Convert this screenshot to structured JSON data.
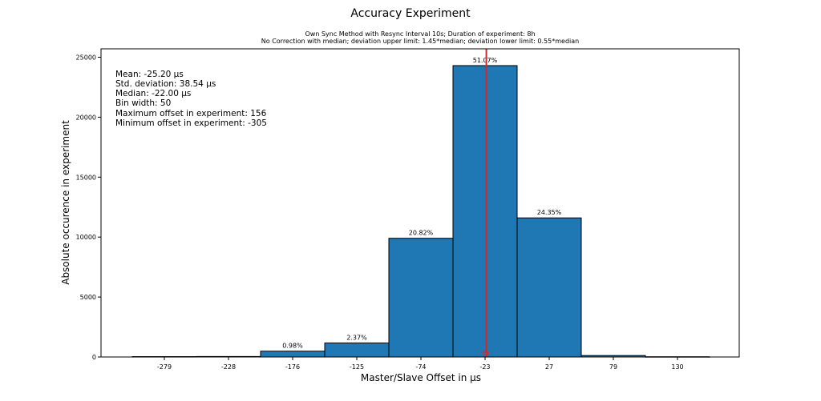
{
  "chart_data": {
    "type": "bar",
    "title": "Accuracy Experiment",
    "subtitle_lines": [
      "Own Sync Method with Resync Interval 10s; Duration of experiment: 8h",
      "No Correction with median; deviation upper limit: 1.45*median; deviation lower limit: 0.55*median"
    ],
    "xlabel": "Master/Slave Offset in µs",
    "ylabel": "Absolute occurence in experiment",
    "categories": [
      "-279",
      "-228",
      "-176",
      "-125",
      "-74",
      "-23",
      "27",
      "79",
      "130"
    ],
    "values": [
      30,
      40,
      485,
      1170,
      9900,
      24300,
      11600,
      120,
      20
    ],
    "bar_labels": [
      "",
      "",
      "0.98%",
      "2.37%",
      "20.82%",
      "51.07%",
      "24.35%",
      "",
      ""
    ],
    "ylim": [
      0,
      25700
    ],
    "yticks": [
      0,
      5000,
      10000,
      15000,
      20000,
      25000
    ],
    "median_line_x": -22,
    "mean_marker_x": -25.2,
    "stats": [
      "Mean: -25.20 µs",
      "Std. deviation: 38.54 µs",
      "Median: -22.00 µs",
      "Bin width: 50",
      "Maximum offset in experiment: 156",
      "Minimum offset in experiment: -305"
    ],
    "colors": {
      "bar": "#1f77b4",
      "edge": "#000000",
      "median_line": "#d62728"
    }
  }
}
